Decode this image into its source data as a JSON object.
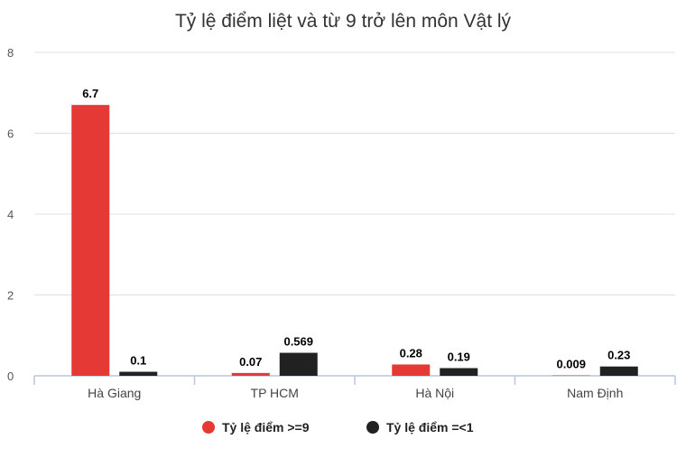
{
  "chart_data": {
    "type": "bar",
    "title": "Tỷ lệ điểm liệt và từ 9 trở lên môn Vật lý",
    "xlabel": "",
    "ylabel": "",
    "categories": [
      "Hà Giang",
      "TP HCM",
      "Hà Nội",
      "Nam Định"
    ],
    "series": [
      {
        "name": "Tỷ lệ điểm >=9",
        "color": "#e53935",
        "values": [
          6.7,
          0.07,
          0.28,
          0.009
        ],
        "labels": [
          "6.7",
          "0.07",
          "0.28",
          "0.009"
        ]
      },
      {
        "name": "Tỷ lệ điểm =<1",
        "color": "#212121",
        "values": [
          0.1,
          0.569,
          0.19,
          0.23
        ],
        "labels": [
          "0.1",
          "0.569",
          "0.19",
          "0.23"
        ]
      }
    ],
    "ylim": [
      0,
      8
    ],
    "yticks": [
      0,
      2,
      4,
      6,
      8
    ],
    "grid": true,
    "legend": "bottom-center"
  }
}
